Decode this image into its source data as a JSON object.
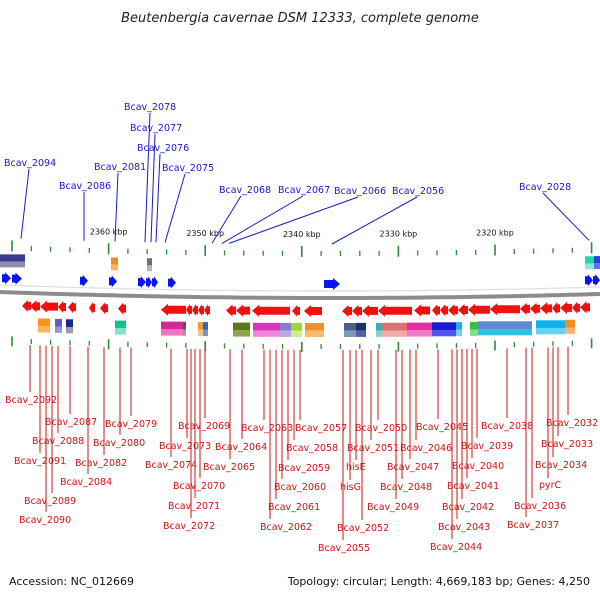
{
  "title": "Beutenbergia cavernae DSM 12333, complete genome",
  "scale_labels": [
    "2360 kbp",
    "2350 kbp",
    "2340 kbp",
    "2330 kbp",
    "2320 kbp"
  ],
  "forward_gene_labels": [
    "Bcav_2094",
    "Bcav_2086",
    "Bcav_2081",
    "Bcav_2078",
    "Bcav_2077",
    "Bcav_2076",
    "Bcav_2075",
    "Bcav_2068",
    "Bcav_2067",
    "Bcav_2066",
    "Bcav_2056",
    "Bcav_2028"
  ],
  "reverse_gene_labels": [
    "Bcav_2092",
    "Bcav_2087",
    "Bcav_2088",
    "Bcav_2091",
    "Bcav_2082",
    "Bcav_2084",
    "Bcav_2089",
    "Bcav_2090",
    "Bcav_2079",
    "Bcav_2080",
    "Bcav_2069",
    "Bcav_2073",
    "Bcav_2074",
    "Bcav_2064",
    "Bcav_2065",
    "Bcav_2070",
    "Bcav_2071",
    "Bcav_2072",
    "Bcav_2063",
    "Bcav_2057",
    "Bcav_2058",
    "Bcav_2059",
    "Bcav_2060",
    "Bcav_2061",
    "Bcav_2062",
    "Bcav_2050",
    "Bcav_2051",
    "hisE",
    "hisG",
    "Bcav_2052",
    "Bcav_2055",
    "Bcav_2045",
    "Bcav_2046",
    "Bcav_2047",
    "Bcav_2048",
    "Bcav_2049",
    "Bcav_2038",
    "Bcav_2039",
    "Bcav_2040",
    "Bcav_2041",
    "Bcav_2042",
    "Bcav_2043",
    "Bcav_2044",
    "Bcav_2036",
    "Bcav_2037",
    "pyrC",
    "Bcav_2034",
    "Bcav_2033",
    "Bcav_2032"
  ],
  "footer": {
    "accession": "Accession: NC_012669",
    "topology": "Topology: circular; Length: 4,669,183 bp; Genes: 4,250"
  },
  "colors": {
    "forward_gene": "#0a14f0",
    "reverse_gene": "#f01010",
    "forward_label": "#1a1ac8",
    "reverse_label": "#cc1414",
    "scale_tick": "#2e8b2e",
    "backbone": "#8c8c8c"
  }
}
